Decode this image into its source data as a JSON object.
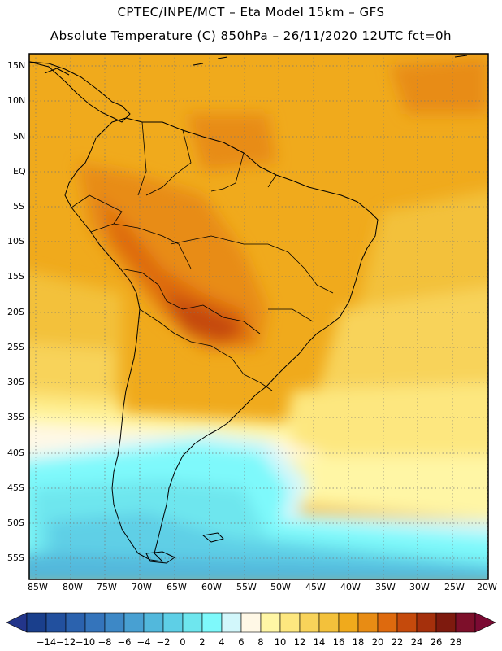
{
  "header": {
    "line1": "CPTEC/INPE/MCT –  Eta Model 15km – GFS",
    "line2": "Absolute Temperature (C) 850hPa – 26/11/2020 12UTC fct=0h"
  },
  "map": {
    "lat_range": [
      -58,
      18
    ],
    "lon_range": [
      -86,
      -20
    ],
    "lat_ticks": [
      "15N",
      "10N",
      "5N",
      "EQ",
      "5S",
      "10S",
      "15S",
      "20S",
      "25S",
      "30S",
      "35S",
      "40S",
      "45S",
      "50S",
      "55S"
    ],
    "lon_ticks": [
      "85W",
      "80W",
      "75W",
      "70W",
      "65W",
      "60W",
      "55W",
      "50W",
      "45W",
      "40W",
      "35W",
      "30W",
      "25W",
      "20W"
    ],
    "grid": "dotted"
  },
  "colorbar": {
    "labels": [
      "−14",
      "−12",
      "−10",
      "−8",
      "−6",
      "−4",
      "−2",
      "0",
      "2",
      "4",
      "6",
      "8",
      "10",
      "12",
      "14",
      "16",
      "18",
      "20",
      "22",
      "24",
      "26",
      "28"
    ],
    "colors": [
      "#1a3f8c",
      "#22509e",
      "#2b62ae",
      "#3474bb",
      "#3d88c6",
      "#48a0d2",
      "#52b8dc",
      "#5ecfe6",
      "#6ee6ee",
      "#7ef9fb",
      "#d2f7fb",
      "#fff8e6",
      "#fff6a5",
      "#fde77f",
      "#f8d35a",
      "#f3c13b",
      "#f0aa1c",
      "#e88c14",
      "#de6a0e",
      "#c54a0c",
      "#a5300c",
      "#7e1a0e",
      "#7d0f2a"
    ],
    "min_color": "#23358a",
    "max_color": "#7b0a33"
  }
}
